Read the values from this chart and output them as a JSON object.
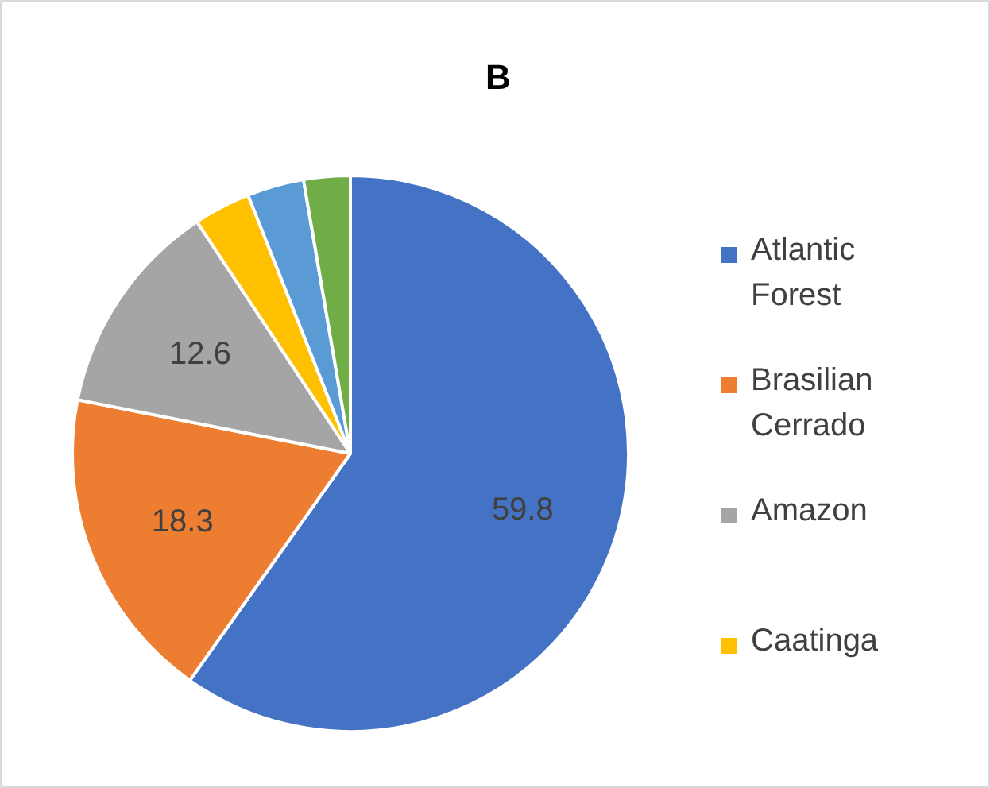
{
  "chart_data": {
    "type": "pie",
    "title": "B",
    "categories": [
      "Atlantic Forest",
      "Brasilian Cerrado",
      "Amazon",
      "Caatinga",
      null,
      null
    ],
    "values": [
      59.8,
      18.3,
      12.6,
      3.3,
      3.3,
      2.7
    ],
    "colors": [
      "#4472c4",
      "#ed7d31",
      "#a5a5a5",
      "#ffc000",
      "#5b9bd5",
      "#70ad47"
    ],
    "value_labels": [
      "59.8",
      "18.3",
      "12.6",
      null,
      null,
      null
    ],
    "legend": "right"
  }
}
